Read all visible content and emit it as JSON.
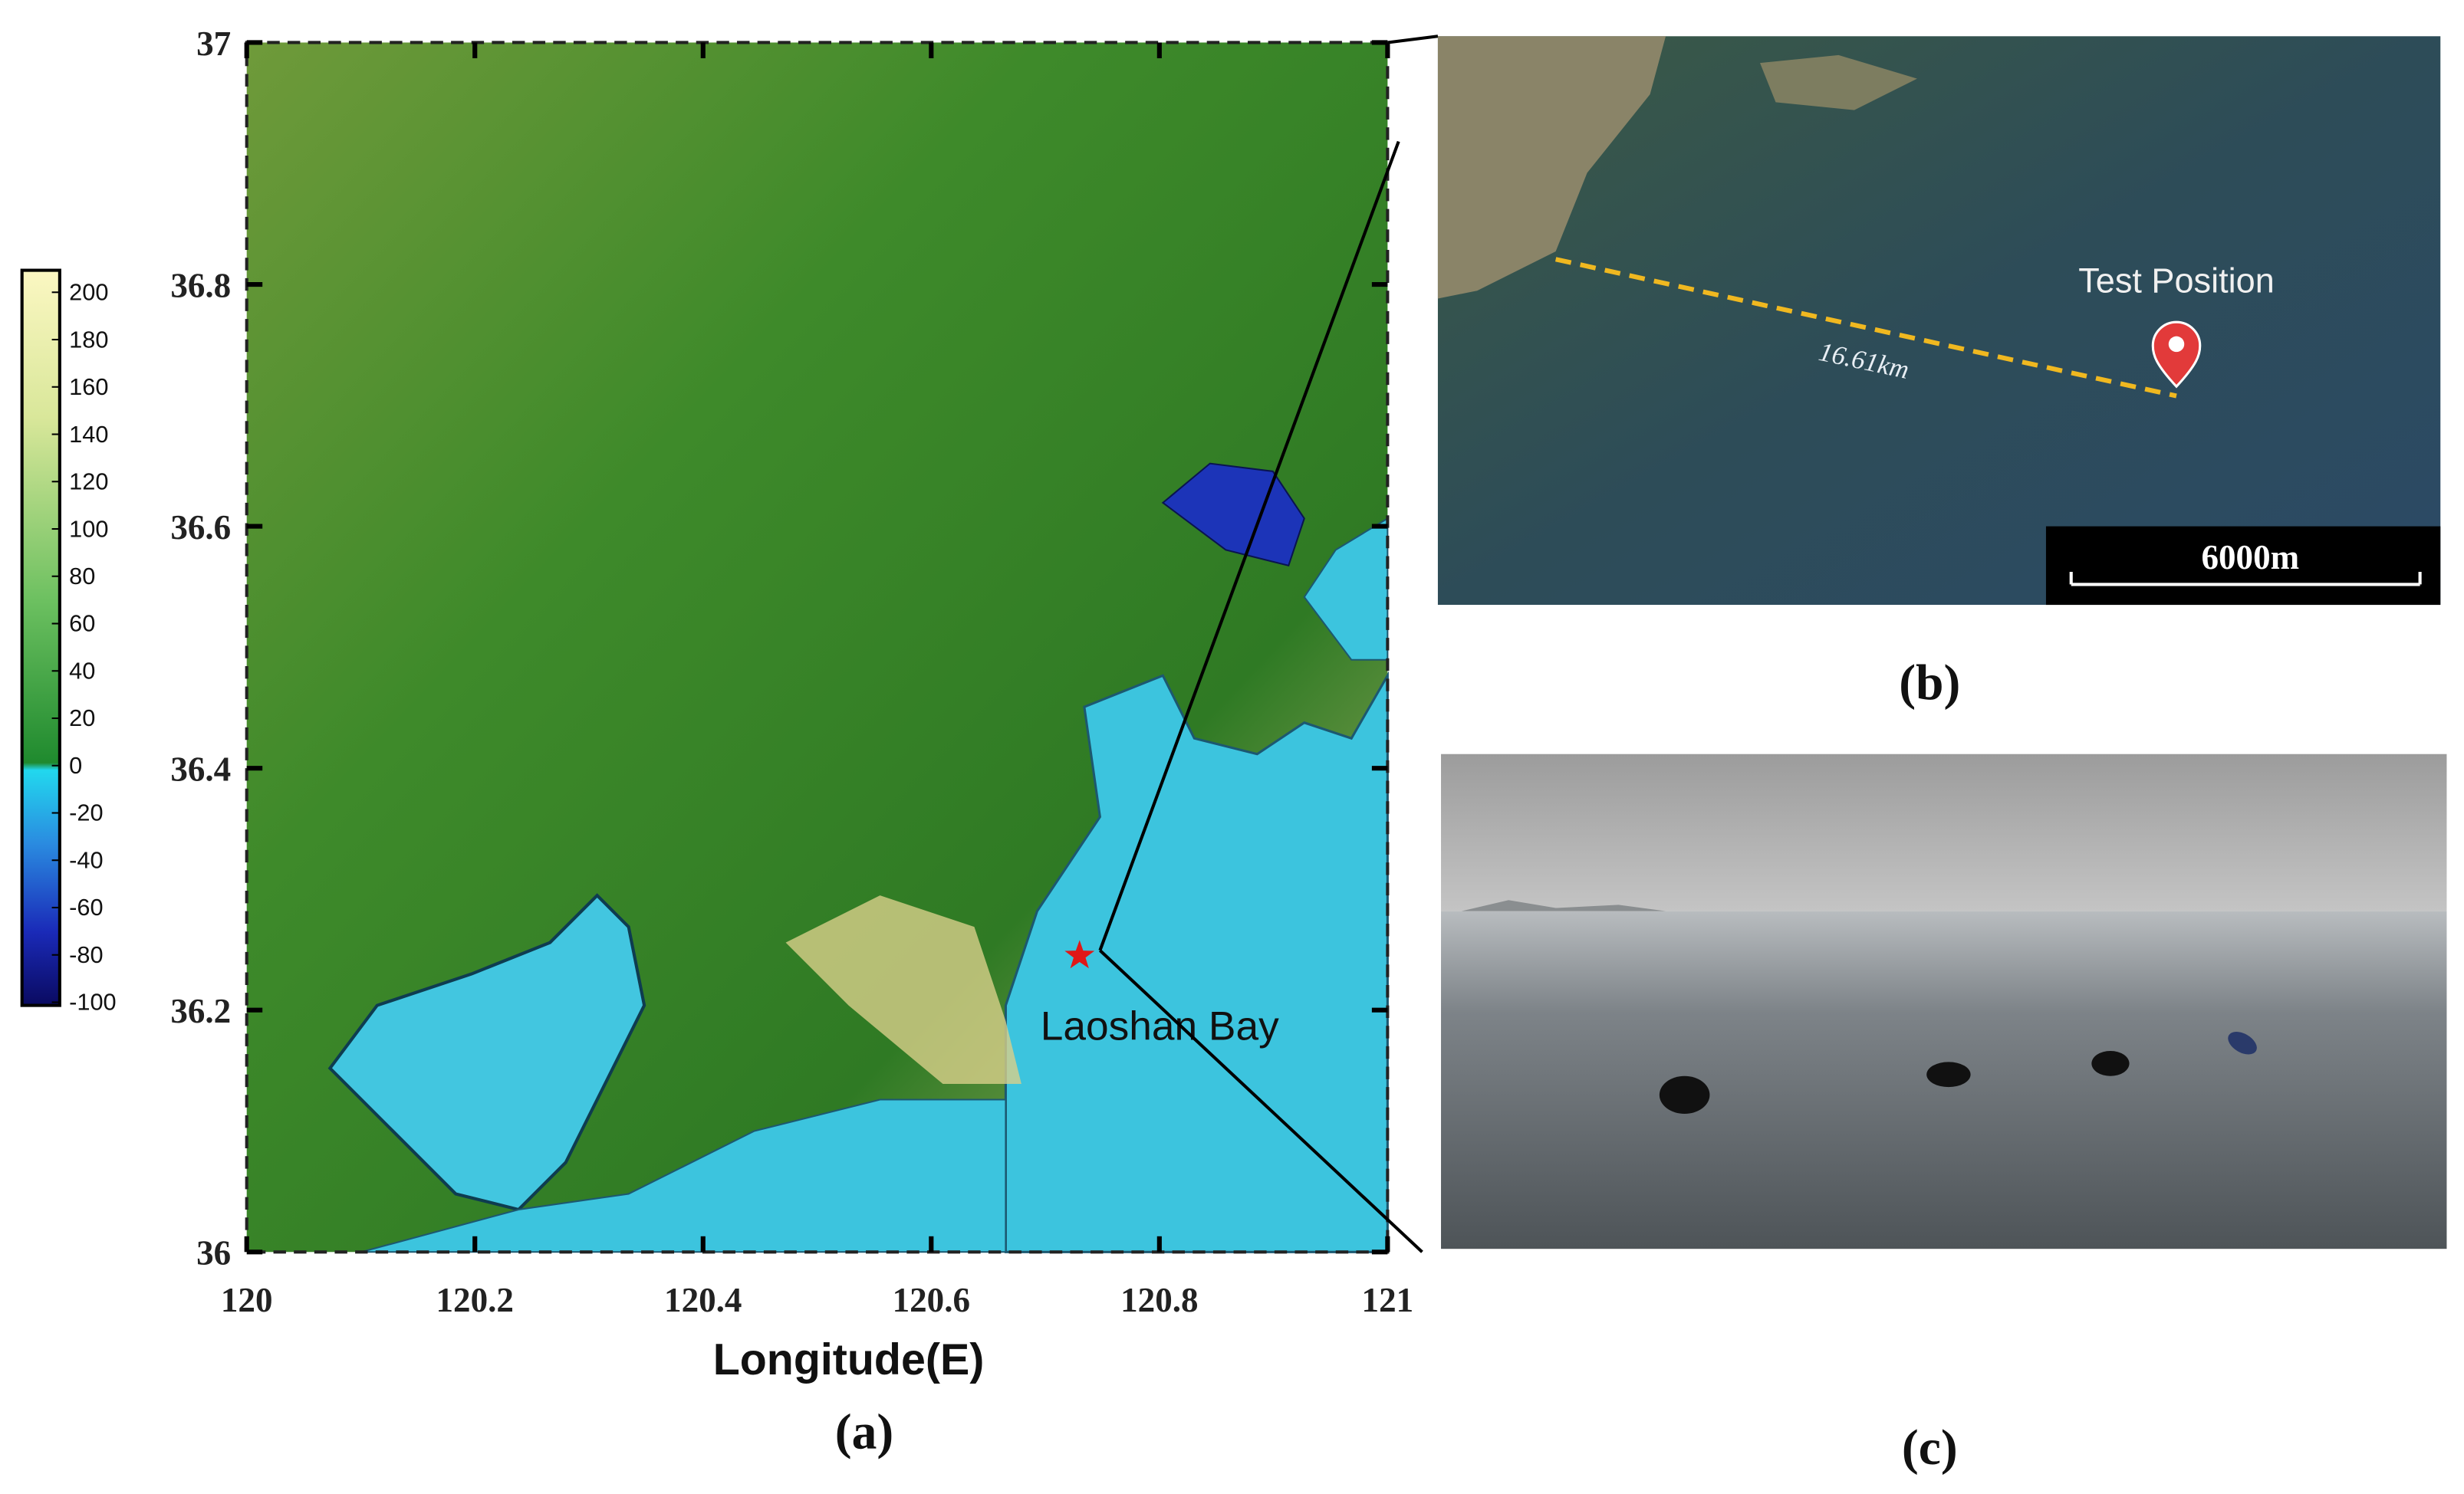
{
  "panel_a": {
    "label": "(a)",
    "x_label": "Longitude(E)",
    "annotation": "Laoshan Bay",
    "xlim": [
      120,
      121
    ],
    "ylim": [
      36,
      37
    ],
    "xticks": [
      120,
      120.2,
      120.4,
      120.6,
      120.8,
      121
    ],
    "yticks": [
      36,
      36.2,
      36.4,
      36.6,
      36.8,
      37
    ],
    "test_site": {
      "lon": 120.73,
      "lat": 36.245
    },
    "colorbar": {
      "lim": [
        -100,
        200
      ],
      "ticks": [
        200,
        180,
        160,
        140,
        120,
        100,
        80,
        60,
        40,
        20,
        0,
        -20,
        -40,
        -60,
        -80,
        -100
      ]
    }
  },
  "panel_b": {
    "label": "(b)",
    "marker_label": "Test Position",
    "distance": "16.61km",
    "scale_bar": "6000m"
  },
  "panel_c": {
    "label": "(c)"
  }
}
